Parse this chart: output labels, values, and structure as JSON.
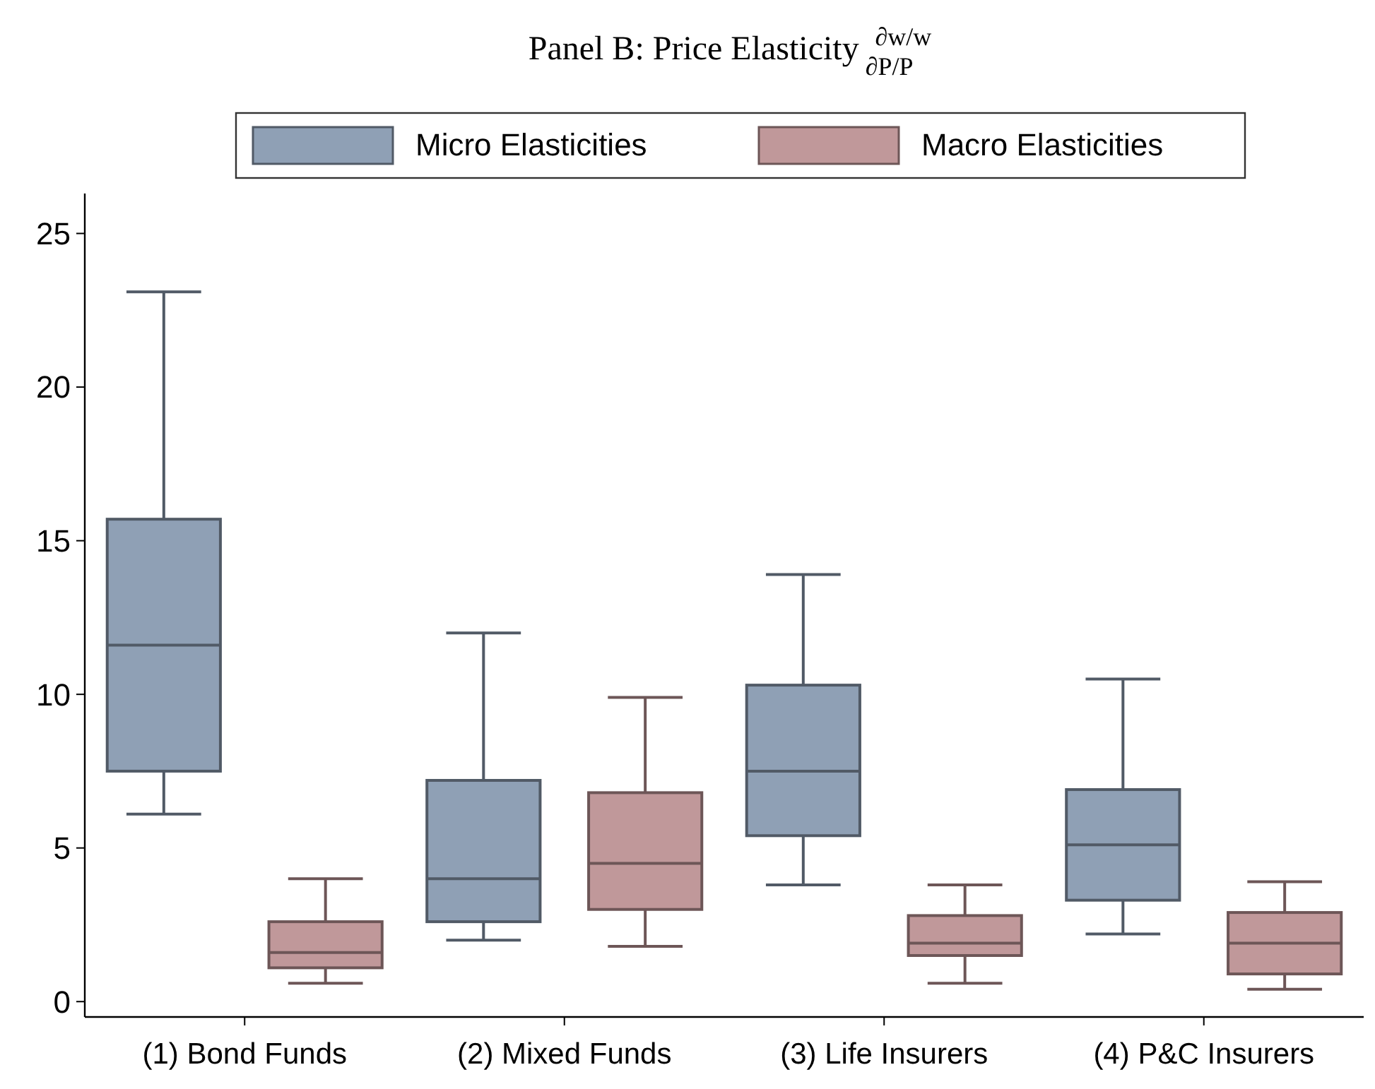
{
  "chart_data": {
    "type": "box",
    "title": "Panel B: Price Elasticity $^{∂w/w}$$_{∂P/P}$",
    "categories": [
      "(1) Bond Funds",
      "(2) Mixed Funds",
      "(3) Life Insurers",
      "(4) P&C Insurers"
    ],
    "series": [
      {
        "name": "Micro Elasticities",
        "color": "#8fa0b5",
        "boxes": [
          {
            "low": 6.1,
            "q1": 7.5,
            "median": 11.6,
            "q3": 15.7,
            "high": 23.1
          },
          {
            "low": 2.0,
            "q1": 2.6,
            "median": 4.0,
            "q3": 7.2,
            "high": 12.0
          },
          {
            "low": 3.8,
            "q1": 5.4,
            "median": 7.5,
            "q3": 10.3,
            "high": 13.9
          },
          {
            "low": 2.2,
            "q1": 3.3,
            "median": 5.1,
            "q3": 6.9,
            "high": 10.5
          }
        ]
      },
      {
        "name": "Macro Elasticities",
        "color": "#c0989a",
        "boxes": [
          {
            "low": 0.6,
            "q1": 1.1,
            "median": 1.6,
            "q3": 2.6,
            "high": 4.0
          },
          {
            "low": 1.8,
            "q1": 3.0,
            "median": 4.5,
            "q3": 6.8,
            "high": 9.9
          },
          {
            "low": 0.6,
            "q1": 1.5,
            "median": 1.9,
            "q3": 2.8,
            "high": 3.8
          },
          {
            "low": 0.4,
            "q1": 0.9,
            "median": 1.9,
            "q3": 2.9,
            "high": 3.9
          }
        ]
      }
    ],
    "ylim": [
      -0.5,
      26.3
    ],
    "yticks": [
      0,
      5,
      10,
      15,
      20,
      25
    ],
    "grid": false,
    "legend": "top"
  }
}
